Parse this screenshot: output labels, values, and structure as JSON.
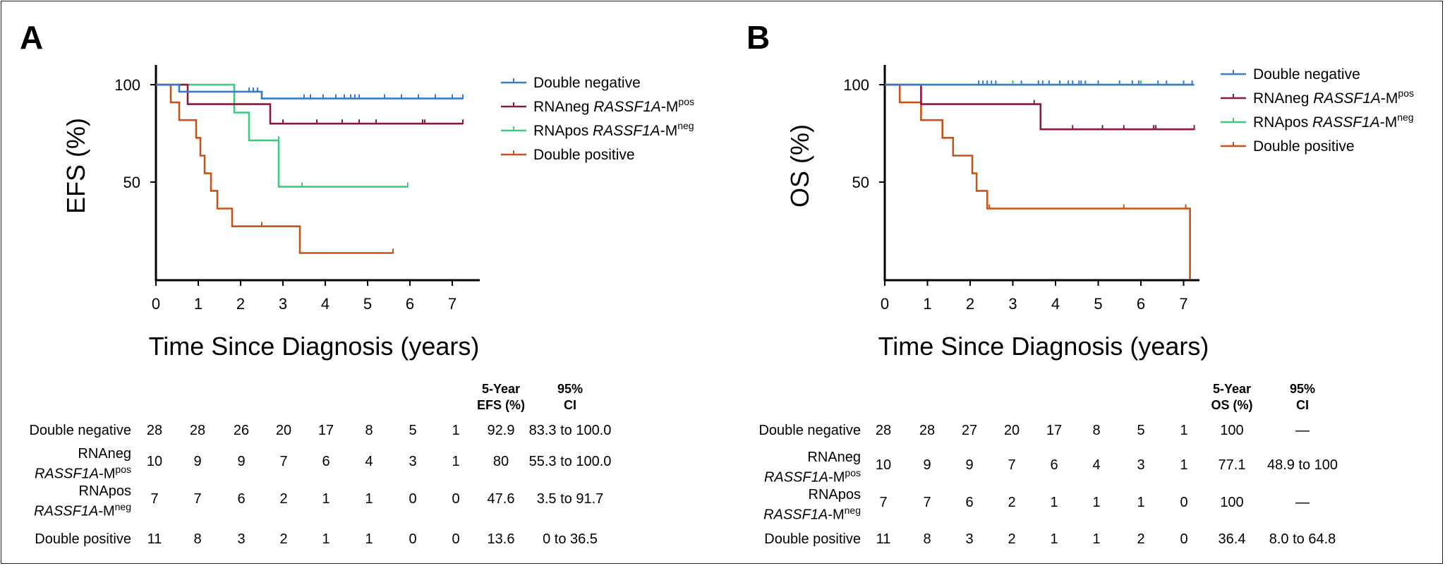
{
  "chart_data": [
    {
      "panel_label": "A",
      "type": "line",
      "subtype": "kaplan-meier",
      "title": "",
      "xlabel": "Time Since Diagnosis (years)",
      "ylabel": "EFS (%)",
      "xlim": [
        0,
        7.3
      ],
      "ylim": [
        0,
        105
      ],
      "x_ticks": [
        0,
        1,
        2,
        3,
        4,
        5,
        6,
        7
      ],
      "y_ticks": [
        100,
        50
      ],
      "legend_placement": "top-right",
      "series": [
        {
          "key": "dn",
          "name": "Double negative",
          "color": "#3a7ac8",
          "x": [
            0,
            0.55,
            0.55,
            2.5,
            2.5,
            7.25
          ],
          "y": [
            100,
            100,
            96.4,
            96.4,
            92.9,
            92.9
          ],
          "censors": [
            [
              2.2,
              96.4
            ],
            [
              2.3,
              96.4
            ],
            [
              2.4,
              96.4
            ],
            [
              3.5,
              92.9
            ],
            [
              3.65,
              92.9
            ],
            [
              3.95,
              92.9
            ],
            [
              4.25,
              92.9
            ],
            [
              4.45,
              92.9
            ],
            [
              4.6,
              92.9
            ],
            [
              4.7,
              92.9
            ],
            [
              4.8,
              92.9
            ],
            [
              5.4,
              92.9
            ],
            [
              5.8,
              92.9
            ],
            [
              6.2,
              92.9
            ],
            [
              6.6,
              92.9
            ],
            [
              7.0,
              92.9
            ],
            [
              7.25,
              92.9
            ]
          ]
        },
        {
          "key": "rnaneg",
          "name_plain": "RNAneg ",
          "name_ital": "RASSF1A",
          "name_suffix": "-M",
          "name_sup": "pos",
          "color": "#8b1a3a",
          "x": [
            0,
            0.75,
            0.75,
            2.7,
            2.7,
            7.25
          ],
          "y": [
            100,
            100,
            90,
            90,
            80,
            80
          ],
          "censors": [
            [
              3.0,
              80
            ],
            [
              3.8,
              80
            ],
            [
              4.4,
              80
            ],
            [
              4.8,
              80
            ],
            [
              5.2,
              80
            ],
            [
              6.3,
              80
            ],
            [
              6.35,
              80
            ],
            [
              7.25,
              80
            ]
          ]
        },
        {
          "key": "rnapos",
          "name_plain": "RNApos ",
          "name_ital": "RASSF1A",
          "name_suffix": "-M",
          "name_sup": "neg",
          "color": "#3ec882",
          "x": [
            0,
            1.85,
            1.85,
            2.2,
            2.2,
            2.9,
            2.9,
            5.95
          ],
          "y": [
            100,
            100,
            85.7,
            85.7,
            71.4,
            71.4,
            47.6,
            47.6
          ],
          "censors": [
            [
              2.9,
              71.4
            ],
            [
              3.45,
              47.6
            ],
            [
              5.95,
              47.6
            ]
          ]
        },
        {
          "key": "dp",
          "name": "Double positive",
          "color": "#c5541a",
          "x": [
            0,
            0.35,
            0.35,
            0.55,
            0.55,
            0.95,
            0.95,
            1.05,
            1.05,
            1.15,
            1.15,
            1.3,
            1.3,
            1.45,
            1.45,
            1.8,
            1.8,
            3.4,
            3.4,
            5.6
          ],
          "y": [
            100,
            100,
            90.9,
            90.9,
            81.8,
            81.8,
            72.7,
            72.7,
            63.6,
            63.6,
            54.5,
            54.5,
            45.5,
            45.5,
            36.4,
            36.4,
            27.3,
            27.3,
            13.6,
            13.6
          ],
          "censors": [
            [
              2.5,
              27.3
            ],
            [
              5.6,
              13.6
            ]
          ]
        }
      ]
    },
    {
      "panel_label": "B",
      "type": "line",
      "subtype": "kaplan-meier",
      "title": "",
      "xlabel": "Time Since Diagnosis (years)",
      "ylabel": "OS (%)",
      "xlim": [
        0,
        7.3
      ],
      "ylim": [
        0,
        105
      ],
      "x_ticks": [
        0,
        1,
        2,
        3,
        4,
        5,
        6,
        7
      ],
      "y_ticks": [
        100,
        50
      ],
      "legend_placement": "top-right",
      "series": [
        {
          "key": "dn",
          "name": "Double negative",
          "color": "#3a7ac8",
          "x": [
            0,
            7.25
          ],
          "y": [
            100,
            100
          ],
          "censors": [
            [
              2.2,
              100
            ],
            [
              2.3,
              100
            ],
            [
              2.4,
              100
            ],
            [
              2.5,
              100
            ],
            [
              2.6,
              100
            ],
            [
              3.2,
              100
            ],
            [
              3.6,
              100
            ],
            [
              3.7,
              100
            ],
            [
              3.85,
              100
            ],
            [
              4.1,
              100
            ],
            [
              4.3,
              100
            ],
            [
              4.4,
              100
            ],
            [
              4.55,
              100
            ],
            [
              4.6,
              100
            ],
            [
              4.7,
              100
            ],
            [
              5.0,
              100
            ],
            [
              5.5,
              100
            ],
            [
              5.8,
              100
            ],
            [
              5.95,
              100
            ],
            [
              6.4,
              100
            ],
            [
              6.6,
              100
            ],
            [
              7.0,
              100
            ],
            [
              7.2,
              100
            ]
          ]
        },
        {
          "key": "rnaneg",
          "name_plain": "RNAneg ",
          "name_ital": "RASSF1A",
          "name_suffix": "-M",
          "name_sup": "pos",
          "color": "#8b1a3a",
          "x": [
            0,
            0.85,
            0.85,
            3.65,
            3.65,
            7.25
          ],
          "y": [
            100,
            100,
            90,
            90,
            77.1,
            77.1
          ],
          "censors": [
            [
              3.5,
              90
            ],
            [
              4.4,
              77.1
            ],
            [
              5.1,
              77.1
            ],
            [
              5.6,
              77.1
            ],
            [
              6.3,
              77.1
            ],
            [
              6.35,
              77.1
            ],
            [
              7.25,
              77.1
            ]
          ]
        },
        {
          "key": "rnapos",
          "name_plain": "RNApos ",
          "name_ital": "RASSF1A",
          "name_suffix": "-M",
          "name_sup": "neg",
          "color": "#3ec882",
          "x": [
            0,
            7.25
          ],
          "y": [
            100,
            100
          ],
          "censors": [
            [
              3.0,
              100
            ],
            [
              6.0,
              100
            ]
          ]
        },
        {
          "key": "dp",
          "name": "Double positive",
          "color": "#c5541a",
          "x": [
            0,
            0.35,
            0.35,
            0.85,
            0.85,
            1.35,
            1.35,
            1.6,
            1.6,
            2.05,
            2.05,
            2.15,
            2.15,
            2.4,
            2.4,
            7.15,
            7.15
          ],
          "y": [
            100,
            100,
            90.9,
            90.9,
            81.8,
            81.8,
            72.7,
            72.7,
            63.6,
            63.6,
            54.5,
            54.5,
            45.5,
            45.5,
            36.4,
            36.4,
            0
          ],
          "censors": [
            [
              2.45,
              36.4
            ],
            [
              5.6,
              36.4
            ],
            [
              7.05,
              36.4
            ]
          ]
        }
      ]
    }
  ],
  "tables": {
    "a": {
      "head_rate": [
        "5-Year",
        "EFS (%)"
      ],
      "head_ci": [
        "95%",
        "CI"
      ],
      "rows": [
        {
          "label_lines": [
            "Double negative"
          ],
          "counts": [
            "28",
            "28",
            "26",
            "20",
            "17",
            "8",
            "5",
            "1"
          ],
          "rate": "92.9",
          "ci": "83.3 to 100.0"
        },
        {
          "label_lines": [
            "RNAneg"
          ],
          "label2": {
            "ital": "RASSF1A",
            "suffix": "-M",
            "sup": "pos"
          },
          "counts": [
            "10",
            "9",
            "9",
            "7",
            "6",
            "4",
            "3",
            "1"
          ],
          "rate": "80",
          "ci": "55.3 to 100.0"
        },
        {
          "label_lines": [
            "RNApos"
          ],
          "label2": {
            "ital": "RASSF1A",
            "suffix": "-M",
            "sup": "neg"
          },
          "counts": [
            "7",
            "7",
            "6",
            "2",
            "1",
            "1",
            "0",
            "0"
          ],
          "rate": "47.6",
          "ci": "3.5 to 91.7"
        },
        {
          "label_lines": [
            "Double positive"
          ],
          "counts": [
            "11",
            "8",
            "3",
            "2",
            "1",
            "1",
            "0",
            "0"
          ],
          "rate": "13.6",
          "ci": "0 to 36.5"
        }
      ]
    },
    "b": {
      "head_rate": [
        "5-Year",
        "OS (%)"
      ],
      "head_ci": [
        "95%",
        "CI"
      ],
      "rows": [
        {
          "label_lines": [
            "Double negative"
          ],
          "counts": [
            "28",
            "28",
            "27",
            "20",
            "17",
            "8",
            "5",
            "1"
          ],
          "rate": "100",
          "ci": "—"
        },
        {
          "label_lines": [
            "RNAneg"
          ],
          "label2": {
            "ital": "RASSF1A",
            "suffix": "-M",
            "sup": "pos"
          },
          "counts": [
            "10",
            "9",
            "9",
            "7",
            "6",
            "4",
            "3",
            "1"
          ],
          "rate": "77.1",
          "ci": "48.9 to 100"
        },
        {
          "label_lines": [
            "RNApos"
          ],
          "label2": {
            "ital": "RASSF1A",
            "suffix": "-M",
            "sup": "neg"
          },
          "counts": [
            "7",
            "7",
            "6",
            "2",
            "1",
            "1",
            "1",
            "0"
          ],
          "rate": "100",
          "ci": "—"
        },
        {
          "label_lines": [
            "Double positive"
          ],
          "counts": [
            "11",
            "8",
            "3",
            "2",
            "1",
            "1",
            "2",
            "0"
          ],
          "rate": "36.4",
          "ci": "8.0 to 64.8"
        }
      ]
    }
  }
}
